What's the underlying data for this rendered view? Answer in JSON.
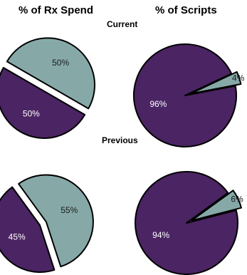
{
  "headers": {
    "left_column": "% of Rx Spend",
    "right_column": "% of Scripts",
    "top_row": "Current",
    "bottom_row": "Previous"
  },
  "colors": {
    "purple": "#4b2463",
    "teal": "#86a9a8",
    "outline": "#000000",
    "purple_label": "#ffffff",
    "teal_label": "#1a1a1a"
  },
  "chart_data": [
    {
      "type": "pie",
      "name": "current-rx-spend",
      "column": "% of Rx Spend",
      "row": "Current",
      "slices": [
        {
          "label": "50%",
          "value": 50,
          "color": "#86a9a8",
          "exploded": true
        },
        {
          "label": "50%",
          "value": 50,
          "color": "#4b2463",
          "exploded": false
        }
      ]
    },
    {
      "type": "pie",
      "name": "current-scripts",
      "column": "% of Scripts",
      "row": "Current",
      "slices": [
        {
          "label": "4%",
          "value": 4,
          "color": "#86a9a8",
          "exploded": true
        },
        {
          "label": "96%",
          "value": 96,
          "color": "#4b2463",
          "exploded": false
        }
      ]
    },
    {
      "type": "pie",
      "name": "previous-rx-spend",
      "column": "% of Rx Spend",
      "row": "Previous",
      "slices": [
        {
          "label": "55%",
          "value": 55,
          "color": "#86a9a8",
          "exploded": true
        },
        {
          "label": "45%",
          "value": 45,
          "color": "#4b2463",
          "exploded": false
        }
      ]
    },
    {
      "type": "pie",
      "name": "previous-scripts",
      "column": "% of Scripts",
      "row": "Previous",
      "slices": [
        {
          "label": "6%",
          "value": 6,
          "color": "#86a9a8",
          "exploded": true
        },
        {
          "label": "94%",
          "value": 94,
          "color": "#4b2463",
          "exploded": false
        }
      ]
    }
  ]
}
